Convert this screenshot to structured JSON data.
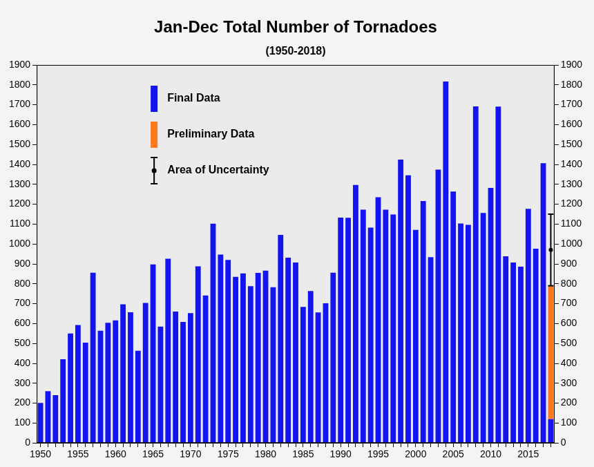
{
  "chart_data": {
    "type": "bar",
    "title": "Jan-Dec Total Number of Tornadoes",
    "subtitle": "(1950-2018)",
    "stacked": true,
    "grid": false,
    "legend": "upper left",
    "categories": [
      "1950",
      null,
      null,
      null,
      null,
      "1955",
      null,
      null,
      null,
      null,
      "1960",
      null,
      null,
      null,
      null,
      "1965",
      null,
      null,
      null,
      null,
      "1970",
      null,
      null,
      null,
      null,
      "1975",
      null,
      null,
      null,
      null,
      "1980",
      null,
      null,
      null,
      null,
      "1985",
      null,
      null,
      null,
      null,
      "1990",
      null,
      null,
      null,
      null,
      "1995",
      null,
      null,
      null,
      null,
      "2000",
      null,
      null,
      null,
      null,
      "2005",
      null,
      null,
      null,
      null,
      "2010",
      null,
      null,
      null,
      null,
      "2015",
      null,
      null,
      null
    ],
    "series": [
      {
        "name": "Final Data",
        "type": "bar",
        "color": "#1414f0",
        "values": [
          201,
          260,
          240,
          421,
          550,
          593,
          504,
          856,
          564,
          604,
          616,
          697,
          657,
          463,
          704,
          897,
          585,
          926,
          660,
          608,
          653,
          888,
          741,
          1102,
          947,
          920,
          835,
          852,
          788,
          855,
          866,
          783,
          1046,
          931,
          907,
          684,
          764,
          656,
          702,
          856,
          1133,
          1132,
          1297,
          1173,
          1082,
          1235,
          1173,
          1148,
          1424,
          1345,
          1071,
          1216,
          934,
          1374,
          1817,
          1264,
          1103,
          1096,
          1692,
          1156,
          1282,
          1691,
          938,
          907,
          886,
          1177,
          976,
          1406,
          120
        ]
      },
      {
        "name": "Preliminary Data",
        "type": "bar",
        "color": "#ff7a1f",
        "values": [
          null,
          null,
          null,
          null,
          null,
          null,
          null,
          null,
          null,
          null,
          null,
          null,
          null,
          null,
          null,
          null,
          null,
          null,
          null,
          null,
          null,
          null,
          null,
          null,
          null,
          null,
          null,
          null,
          null,
          null,
          null,
          null,
          null,
          null,
          null,
          null,
          null,
          null,
          null,
          null,
          null,
          null,
          null,
          null,
          null,
          null,
          null,
          null,
          null,
          null,
          null,
          null,
          null,
          null,
          null,
          null,
          null,
          null,
          null,
          null,
          null,
          null,
          null,
          null,
          null,
          null,
          null,
          null,
          665
        ]
      },
      {
        "name": "Area of Uncertainty",
        "type": "error_bar",
        "color": "#000000",
        "values": [
          null,
          null,
          null,
          null,
          null,
          null,
          null,
          null,
          null,
          null,
          null,
          null,
          null,
          null,
          null,
          null,
          null,
          null,
          null,
          null,
          null,
          null,
          null,
          null,
          null,
          null,
          null,
          null,
          null,
          null,
          null,
          null,
          null,
          null,
          null,
          null,
          null,
          null,
          null,
          null,
          null,
          null,
          null,
          null,
          null,
          null,
          null,
          null,
          null,
          null,
          null,
          null,
          null,
          null,
          null,
          null,
          null,
          null,
          null,
          null,
          null,
          null,
          null,
          null,
          null,
          null,
          null,
          null,
          970
        ],
        "low": [
          null,
          null,
          null,
          null,
          null,
          null,
          null,
          null,
          null,
          null,
          null,
          null,
          null,
          null,
          null,
          null,
          null,
          null,
          null,
          null,
          null,
          null,
          null,
          null,
          null,
          null,
          null,
          null,
          null,
          null,
          null,
          null,
          null,
          null,
          null,
          null,
          null,
          null,
          null,
          null,
          null,
          null,
          null,
          null,
          null,
          null,
          null,
          null,
          null,
          null,
          null,
          null,
          null,
          null,
          null,
          null,
          null,
          null,
          null,
          null,
          null,
          null,
          null,
          null,
          null,
          null,
          null,
          null,
          790
        ],
        "high": [
          null,
          null,
          null,
          null,
          null,
          null,
          null,
          null,
          null,
          null,
          null,
          null,
          null,
          null,
          null,
          null,
          null,
          null,
          null,
          null,
          null,
          null,
          null,
          null,
          null,
          null,
          null,
          null,
          null,
          null,
          null,
          null,
          null,
          null,
          null,
          null,
          null,
          null,
          null,
          null,
          null,
          null,
          null,
          null,
          null,
          null,
          null,
          null,
          null,
          null,
          null,
          null,
          null,
          null,
          null,
          null,
          null,
          null,
          null,
          null,
          null,
          null,
          null,
          null,
          null,
          null,
          null,
          null,
          1150
        ]
      }
    ],
    "ylim": [
      0,
      1900
    ],
    "yticks": [
      0,
      100,
      200,
      300,
      400,
      500,
      600,
      700,
      800,
      900,
      1000,
      1100,
      1200,
      1300,
      1400,
      1500,
      1600,
      1700,
      1800,
      1900
    ],
    "y2lim": [
      0,
      1900
    ],
    "y2ticks": [
      0,
      100,
      200,
      300,
      400,
      500,
      600,
      700,
      800,
      900,
      1000,
      1100,
      1200,
      1300,
      1400,
      1500,
      1600,
      1700,
      1800,
      1900
    ]
  }
}
